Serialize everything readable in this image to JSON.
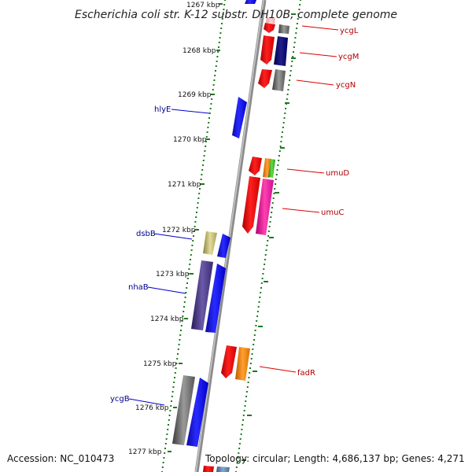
{
  "header": {
    "title": "Escherichia coli str. K-12 substr. DH10B, complete genome"
  },
  "footer": {
    "accession": "Accession: NC_010473",
    "topology": "Topology: circular; Length: 4,686,137 bp; Genes: 4,271"
  },
  "ruler": {
    "ticks": [
      "1267 kbp",
      "1268 kbp",
      "1269 kbp",
      "1270 kbp",
      "1271 kbp",
      "1272 kbp",
      "1273 kbp",
      "1274 kbp",
      "1275 kbp",
      "1276 kbp",
      "1277 kbp"
    ]
  },
  "labels": {
    "left": [
      "hlyE",
      "dsbB",
      "nhaB",
      "ycgB"
    ],
    "right": [
      "ycgL",
      "ycgM",
      "ycgN",
      "umuD",
      "umuC",
      "fadR"
    ]
  },
  "colors": {
    "backbone": "#8c8c8c",
    "dots": "#1f7a1f",
    "left_label": "#00008b",
    "right_label": "#b00000",
    "leader_left": "#0000cc",
    "leader_right": "#dd0000"
  }
}
